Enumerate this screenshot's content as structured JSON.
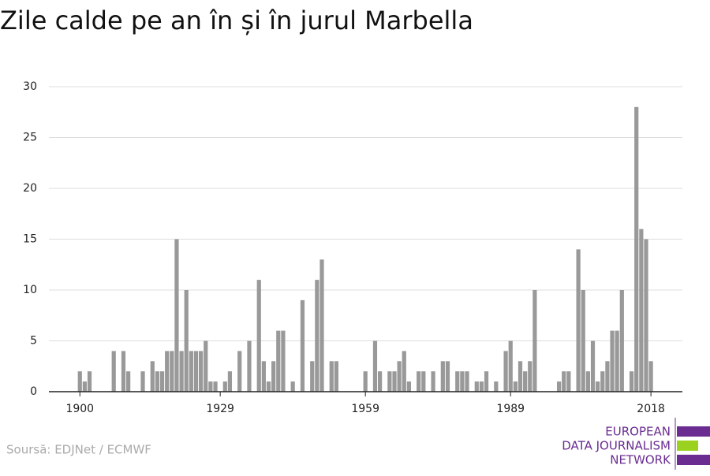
{
  "chart_data": {
    "type": "bar",
    "title": "Zile calde pe an în și în jurul Marbella",
    "x": [
      1900,
      1901,
      1902,
      1903,
      1904,
      1905,
      1906,
      1907,
      1908,
      1909,
      1910,
      1911,
      1912,
      1913,
      1914,
      1915,
      1916,
      1917,
      1918,
      1919,
      1920,
      1921,
      1922,
      1923,
      1924,
      1925,
      1926,
      1927,
      1928,
      1929,
      1930,
      1931,
      1932,
      1933,
      1934,
      1935,
      1936,
      1937,
      1938,
      1939,
      1940,
      1941,
      1942,
      1943,
      1944,
      1945,
      1946,
      1947,
      1948,
      1949,
      1950,
      1951,
      1952,
      1953,
      1954,
      1955,
      1956,
      1957,
      1958,
      1959,
      1960,
      1961,
      1962,
      1963,
      1964,
      1965,
      1966,
      1967,
      1968,
      1969,
      1970,
      1971,
      1972,
      1973,
      1974,
      1975,
      1976,
      1977,
      1978,
      1979,
      1980,
      1981,
      1982,
      1983,
      1984,
      1985,
      1986,
      1987,
      1988,
      1989,
      1990,
      1991,
      1992,
      1993,
      1994,
      1995,
      1996,
      1997,
      1998,
      1999,
      2000,
      2001,
      2002,
      2003,
      2004,
      2005,
      2006,
      2007,
      2008,
      2009,
      2010,
      2011,
      2012,
      2013,
      2014,
      2015,
      2016,
      2017,
      2018
    ],
    "values": [
      2,
      1,
      2,
      0,
      0,
      0,
      0,
      4,
      0,
      4,
      2,
      0,
      0,
      2,
      0,
      3,
      2,
      2,
      4,
      4,
      15,
      4,
      10,
      4,
      4,
      4,
      5,
      1,
      1,
      0,
      1,
      2,
      0,
      4,
      0,
      5,
      0,
      11,
      3,
      1,
      3,
      6,
      6,
      0,
      1,
      0,
      9,
      0,
      3,
      11,
      13,
      0,
      3,
      3,
      0,
      0,
      0,
      0,
      0,
      2,
      0,
      5,
      2,
      0,
      2,
      2,
      3,
      4,
      1,
      0,
      2,
      2,
      0,
      2,
      0,
      3,
      3,
      0,
      2,
      2,
      2,
      0,
      1,
      1,
      2,
      0,
      1,
      0,
      4,
      5,
      1,
      3,
      2,
      3,
      10,
      0,
      0,
      0,
      0,
      1,
      2,
      2,
      0,
      14,
      10,
      2,
      5,
      1,
      2,
      3,
      6,
      6,
      10,
      0,
      2,
      28,
      16,
      15,
      3
    ],
    "color": "#999999",
    "xlim": [
      1893.6,
      2024.5
    ],
    "xticks": [
      1900,
      1929,
      1959,
      1989,
      2018
    ],
    "ylim": [
      0,
      30
    ],
    "yticks": [
      0,
      5,
      10,
      15,
      20,
      25,
      30
    ],
    "grid": true,
    "source": "Soursă: EDJNet / ECMWF"
  },
  "logo": {
    "lines": [
      "EUROPEAN",
      "DATA JOURNALISM",
      "NETWORK"
    ]
  }
}
